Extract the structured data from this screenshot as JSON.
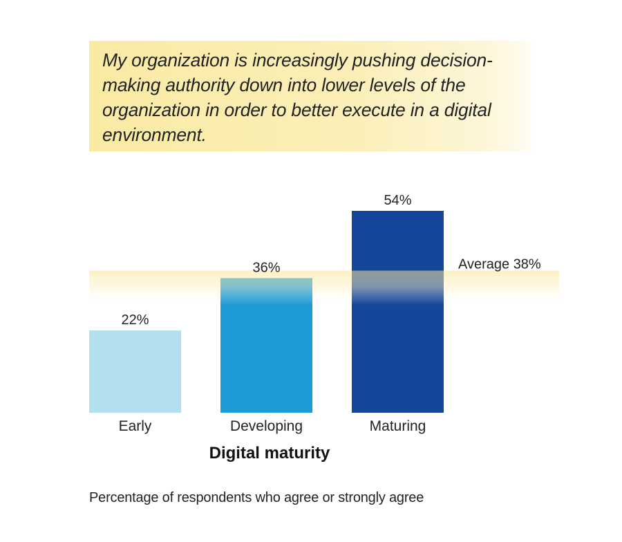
{
  "quote": "My organization is increasingly pushing decision-making authority down into lower levels of the organization in order to better execute in a digital environment.",
  "footnote": "Percentage of respondents who agree or strongly agree",
  "colors": {
    "early": "#b3e0ef",
    "developing": "#1c9bd5",
    "maturing": "#16469a",
    "average_band": "#f8e597",
    "quote_bg": "#f9eaa3"
  },
  "chart_data": {
    "type": "bar",
    "categories": [
      "Early",
      "Developing",
      "Maturing"
    ],
    "values": [
      22,
      36,
      54
    ],
    "value_labels": [
      "22%",
      "36%",
      "54%"
    ],
    "xlabel": "Digital maturity",
    "ylabel": "",
    "ylim": [
      0,
      54
    ],
    "grid": false,
    "reference_line": {
      "label": "Average 38%",
      "value": 38
    }
  }
}
